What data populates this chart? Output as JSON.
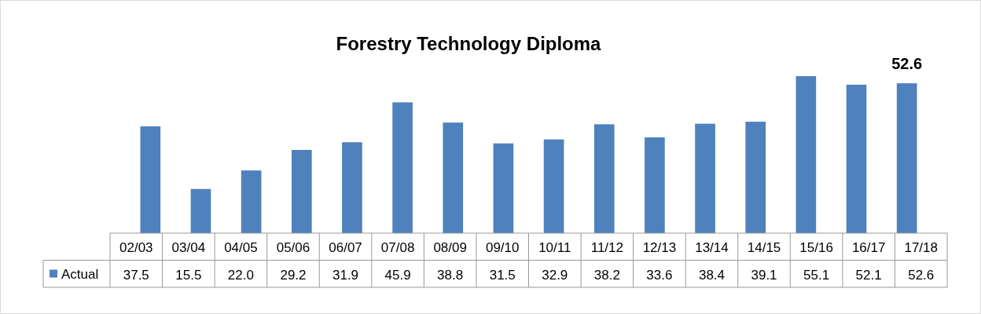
{
  "chart_data": {
    "type": "bar",
    "title": "Forestry Technology Diploma",
    "categories": [
      "02/03",
      "03/04",
      "04/05",
      "05/06",
      "06/07",
      "07/08",
      "08/09",
      "09/10",
      "10/11",
      "11/12",
      "12/13",
      "13/14",
      "14/15",
      "15/16",
      "16/17",
      "17/18"
    ],
    "series": [
      {
        "name": "Actual",
        "color": "#4f81bd",
        "values": [
          37.5,
          15.5,
          22.0,
          29.2,
          31.9,
          45.9,
          38.8,
          31.5,
          32.9,
          38.2,
          33.6,
          38.4,
          39.1,
          55.1,
          52.1,
          52.6
        ],
        "value_labels": [
          "37.5",
          "15.5",
          "22.0",
          "29.2",
          "31.9",
          "45.9",
          "38.8",
          "31.5",
          "32.9",
          "38.2",
          "33.6",
          "38.4",
          "39.1",
          "55.1",
          "52.1",
          "52.6"
        ]
      }
    ],
    "legend": "bottom",
    "annotations": [
      "52.6"
    ]
  }
}
